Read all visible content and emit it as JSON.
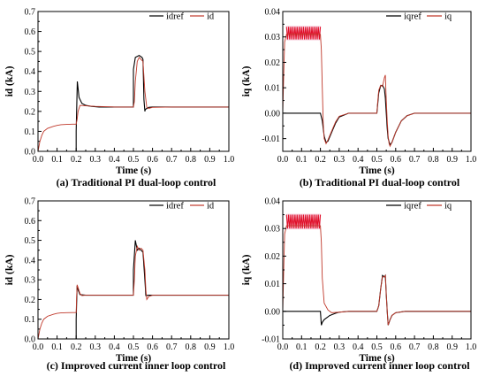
{
  "chart_data": [
    {
      "type": "line",
      "caption": "(a) Traditional PI dual-loop control",
      "xlabel": "Time (s)",
      "ylabel": "id (kA)",
      "xlim": [
        0,
        1.0
      ],
      "ylim": [
        0,
        0.7
      ],
      "xticks": [
        "0.0",
        "0.1",
        "0.2",
        "0.3",
        "0.4",
        "0.5",
        "0.6",
        "0.7",
        "0.8",
        "0.9",
        "1.0"
      ],
      "yticks": [
        "0.0",
        "0.1",
        "0.2",
        "0.3",
        "0.4",
        "0.5",
        "0.6",
        "0.7"
      ],
      "grid": false,
      "legend_position": "top-right",
      "series": [
        {
          "name": "idref",
          "color": "#000000",
          "x": [
            0.2,
            0.2,
            0.206,
            0.215,
            0.23,
            0.25,
            0.28,
            0.32,
            0.4,
            0.5,
            0.5,
            0.51,
            0.53,
            0.545,
            0.55,
            0.555,
            0.56,
            0.562,
            0.58,
            0.6,
            0.7,
            0.8,
            0.9,
            1.0
          ],
          "y": [
            0.0,
            0.1,
            0.35,
            0.27,
            0.24,
            0.23,
            0.225,
            0.222,
            0.222,
            0.222,
            0.41,
            0.47,
            0.48,
            0.47,
            0.46,
            0.26,
            0.2,
            0.21,
            0.22,
            0.222,
            0.222,
            0.222,
            0.222,
            0.222
          ]
        },
        {
          "name": "id",
          "color": "#c0392b",
          "x": [
            0.0,
            0.01,
            0.02,
            0.03,
            0.05,
            0.08,
            0.1,
            0.12,
            0.15,
            0.18,
            0.2,
            0.205,
            0.21,
            0.22,
            0.25,
            0.3,
            0.4,
            0.5,
            0.505,
            0.51,
            0.52,
            0.53,
            0.54,
            0.55,
            0.56,
            0.57,
            0.58,
            0.6,
            0.7,
            0.8,
            0.9,
            1.0
          ],
          "y": [
            0.0,
            0.05,
            0.08,
            0.1,
            0.115,
            0.125,
            0.13,
            0.133,
            0.135,
            0.136,
            0.136,
            0.16,
            0.2,
            0.23,
            0.228,
            0.225,
            0.222,
            0.222,
            0.25,
            0.35,
            0.45,
            0.47,
            0.46,
            0.45,
            0.3,
            0.22,
            0.215,
            0.22,
            0.222,
            0.222,
            0.222,
            0.222
          ]
        }
      ]
    },
    {
      "type": "line",
      "caption": "(b) Traditional PI dual-loop control",
      "xlabel": "Time (s)",
      "ylabel": "iq (kA)",
      "xlim": [
        0,
        1.0
      ],
      "ylim": [
        -0.015,
        0.04
      ],
      "xticks": [
        "0.0",
        "0.1",
        "0.2",
        "0.3",
        "0.4",
        "0.5",
        "0.6",
        "0.7",
        "0.8",
        "0.9",
        "1.0"
      ],
      "yticks": [
        "-0.01",
        "0.00",
        "0.01",
        "0.02",
        "0.03",
        "0.04"
      ],
      "grid": false,
      "legend_position": "top-right",
      "oscillation_band": {
        "x_range": [
          0.02,
          0.2
        ],
        "y_range": [
          0.029,
          0.034
        ]
      },
      "series": [
        {
          "name": "iqref",
          "color": "#000000",
          "x": [
            0.0,
            0.2,
            0.2,
            0.21,
            0.22,
            0.23,
            0.24,
            0.26,
            0.28,
            0.3,
            0.35,
            0.4,
            0.45,
            0.5,
            0.505,
            0.51,
            0.52,
            0.53,
            0.54,
            0.545,
            0.55,
            0.555,
            0.56,
            0.57,
            0.58,
            0.6,
            0.63,
            0.66,
            0.7,
            0.75,
            0.8,
            0.9,
            1.0
          ],
          "y": [
            0.0,
            0.0,
            0.0,
            -0.003,
            -0.009,
            -0.0115,
            -0.011,
            -0.0075,
            -0.004,
            -0.0015,
            0.0,
            0.0,
            0.0,
            0.0,
            0.004,
            0.008,
            0.0108,
            0.011,
            0.0095,
            0.006,
            0.0,
            -0.006,
            -0.01,
            -0.0125,
            -0.0115,
            -0.0075,
            -0.003,
            -0.001,
            0.0,
            0.0,
            0.0,
            0.0,
            0.0
          ]
        },
        {
          "name": "iq",
          "color": "#c0392b",
          "x": [
            0.0,
            0.005,
            0.01,
            0.02,
            0.2,
            0.205,
            0.21,
            0.215,
            0.22,
            0.23,
            0.24,
            0.26,
            0.28,
            0.3,
            0.35,
            0.4,
            0.45,
            0.5,
            0.505,
            0.51,
            0.52,
            0.53,
            0.54,
            0.545,
            0.55,
            0.555,
            0.56,
            0.565,
            0.57,
            0.58,
            0.6,
            0.63,
            0.66,
            0.7,
            0.75,
            0.8,
            0.9,
            1.0
          ],
          "y": [
            0.0,
            0.015,
            0.028,
            0.031,
            0.031,
            0.025,
            0.01,
            -0.004,
            -0.01,
            -0.012,
            -0.0105,
            -0.007,
            -0.0035,
            -0.0012,
            0.0,
            0.0,
            0.0,
            0.0,
            0.005,
            0.009,
            0.011,
            0.0105,
            0.014,
            0.015,
            0.005,
            -0.003,
            -0.009,
            -0.012,
            -0.013,
            -0.0115,
            -0.0075,
            -0.003,
            -0.001,
            0.0,
            0.0,
            0.0,
            0.0,
            0.0
          ]
        }
      ]
    },
    {
      "type": "line",
      "caption": "(c) Improved current inner loop control",
      "xlabel": "Time (s)",
      "ylabel": "id (kA)",
      "xlim": [
        0,
        1.0
      ],
      "ylim": [
        0,
        0.7
      ],
      "xticks": [
        "0.0",
        "0.1",
        "0.2",
        "0.3",
        "0.4",
        "0.5",
        "0.6",
        "0.7",
        "0.8",
        "0.9",
        "1.0"
      ],
      "yticks": [
        "0.0",
        "0.1",
        "0.2",
        "0.3",
        "0.4",
        "0.5",
        "0.6",
        "0.7"
      ],
      "grid": false,
      "legend_position": "top-right",
      "series": [
        {
          "name": "idref",
          "color": "#000000",
          "x": [
            0.2,
            0.2,
            0.205,
            0.21,
            0.22,
            0.25,
            0.3,
            0.4,
            0.5,
            0.5,
            0.51,
            0.52,
            0.53,
            0.54,
            0.55,
            0.56,
            0.565,
            0.58,
            0.6,
            0.7,
            0.8,
            0.9,
            1.0
          ],
          "y": [
            0.0,
            0.1,
            0.27,
            0.25,
            0.225,
            0.222,
            0.222,
            0.222,
            0.222,
            0.35,
            0.5,
            0.45,
            0.46,
            0.45,
            0.44,
            0.3,
            0.22,
            0.222,
            0.222,
            0.222,
            0.222,
            0.222,
            0.222
          ]
        },
        {
          "name": "id",
          "color": "#c0392b",
          "x": [
            0.0,
            0.01,
            0.02,
            0.03,
            0.05,
            0.08,
            0.1,
            0.12,
            0.15,
            0.18,
            0.2,
            0.202,
            0.205,
            0.21,
            0.22,
            0.23,
            0.25,
            0.3,
            0.4,
            0.5,
            0.505,
            0.51,
            0.52,
            0.53,
            0.54,
            0.55,
            0.56,
            0.565,
            0.57,
            0.58,
            0.6,
            0.7,
            0.8,
            0.9,
            1.0
          ],
          "y": [
            0.0,
            0.05,
            0.08,
            0.1,
            0.115,
            0.125,
            0.13,
            0.132,
            0.133,
            0.134,
            0.134,
            0.2,
            0.275,
            0.26,
            0.23,
            0.22,
            0.222,
            0.222,
            0.222,
            0.222,
            0.3,
            0.42,
            0.47,
            0.45,
            0.46,
            0.45,
            0.35,
            0.25,
            0.2,
            0.215,
            0.222,
            0.222,
            0.222,
            0.222,
            0.222
          ]
        }
      ]
    },
    {
      "type": "line",
      "caption": "(d) Improved current inner loop control",
      "xlabel": "Time (s)",
      "ylabel": "iq (kA)",
      "xlim": [
        0,
        1.0
      ],
      "ylim": [
        -0.01,
        0.04
      ],
      "xticks": [
        "0.0",
        "0.1",
        "0.2",
        "0.3",
        "0.4",
        "0.5",
        "0.6",
        "0.7",
        "0.8",
        "0.9",
        "1.0"
      ],
      "yticks": [
        "-0.01",
        "0.00",
        "0.01",
        "0.02",
        "0.03",
        "0.04"
      ],
      "grid": false,
      "legend_position": "top-right",
      "oscillation_band": {
        "x_range": [
          0.02,
          0.2
        ],
        "y_range": [
          0.03,
          0.035
        ]
      },
      "series": [
        {
          "name": "iqref",
          "color": "#000000",
          "x": [
            0.0,
            0.2,
            0.2,
            0.205,
            0.21,
            0.22,
            0.25,
            0.28,
            0.3,
            0.35,
            0.4,
            0.45,
            0.5,
            0.51,
            0.52,
            0.53,
            0.54,
            0.545,
            0.55,
            0.555,
            0.56,
            0.57,
            0.58,
            0.6,
            0.65,
            0.7,
            0.8,
            0.9,
            1.0
          ],
          "y": [
            0.0,
            0.0,
            0.0,
            -0.005,
            -0.004,
            -0.003,
            -0.0015,
            -0.0007,
            -0.0003,
            0.0,
            0.0,
            0.0,
            0.0,
            0.002,
            0.008,
            0.013,
            0.0125,
            0.013,
            0.006,
            0.0,
            -0.005,
            -0.003,
            -0.0015,
            -0.0005,
            0.0,
            0.0,
            0.0,
            0.0,
            0.0
          ]
        },
        {
          "name": "iq",
          "color": "#c0392b",
          "x": [
            0.0,
            0.005,
            0.01,
            0.02,
            0.2,
            0.205,
            0.21,
            0.22,
            0.24,
            0.26,
            0.3,
            0.35,
            0.4,
            0.45,
            0.5,
            0.51,
            0.52,
            0.53,
            0.54,
            0.545,
            0.55,
            0.555,
            0.56,
            0.57,
            0.58,
            0.6,
            0.65,
            0.7,
            0.8,
            0.9,
            1.0
          ],
          "y": [
            0.0,
            0.015,
            0.028,
            0.031,
            0.031,
            0.025,
            0.012,
            0.003,
            0.0005,
            -0.0005,
            -0.0003,
            0.0,
            0.0,
            0.0,
            0.0,
            0.002,
            0.008,
            0.0125,
            0.0125,
            0.013,
            0.006,
            0.0,
            -0.005,
            -0.003,
            -0.0015,
            -0.0005,
            0.0,
            0.0,
            0.0,
            0.0,
            0.0
          ]
        }
      ]
    }
  ]
}
